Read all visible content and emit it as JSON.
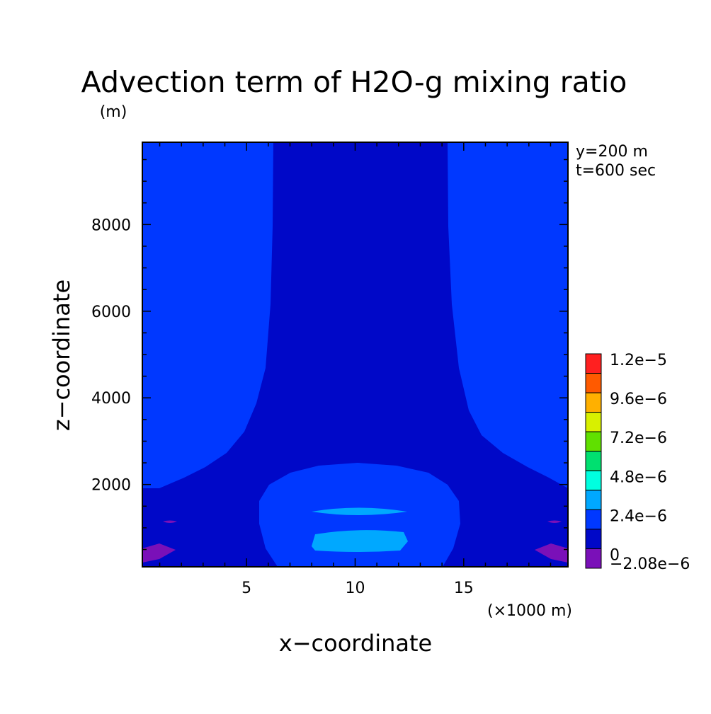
{
  "chart_data": {
    "type": "heatmap",
    "title": "Advection term of H2O-g mixing ratio",
    "y_unit": "(m)",
    "x_unit": "(×1000 m)",
    "xlabel": "x−coordinate",
    "ylabel": "z−coordinate",
    "annotations": [
      "y=200 m",
      "t=600 sec"
    ],
    "xlim": [
      0.2,
      19.8
    ],
    "ylim": [
      100,
      9900
    ],
    "x_ticks": [
      {
        "value": 5,
        "label": "5"
      },
      {
        "value": 10,
        "label": "10"
      },
      {
        "value": 15,
        "label": "15"
      }
    ],
    "y_ticks": [
      {
        "value": 2000,
        "label": "2000"
      },
      {
        "value": 4000,
        "label": "4000"
      },
      {
        "value": 6000,
        "label": "6000"
      },
      {
        "value": 8000,
        "label": "8000"
      }
    ],
    "legend": {
      "placement": "right",
      "labels": [
        "1.2e−5",
        "9.6e−6",
        "7.2e−6",
        "4.8e−6",
        "2.4e−6",
        "0",
        "−2.08e−6"
      ],
      "colors_top_to_bottom": [
        "#ff2020",
        "#ff5a00",
        "#ffb000",
        "#d8f000",
        "#60e000",
        "#00e070",
        "#00ffe0",
        "#00a8ff",
        "#0038ff",
        "#0008c8",
        "#7a10b8"
      ]
    },
    "levels": {
      "negative": "#7a10b8",
      "zero_to_low": "#0008c8",
      "low": "#0038ff",
      "mid": "#00a8ff"
    }
  }
}
